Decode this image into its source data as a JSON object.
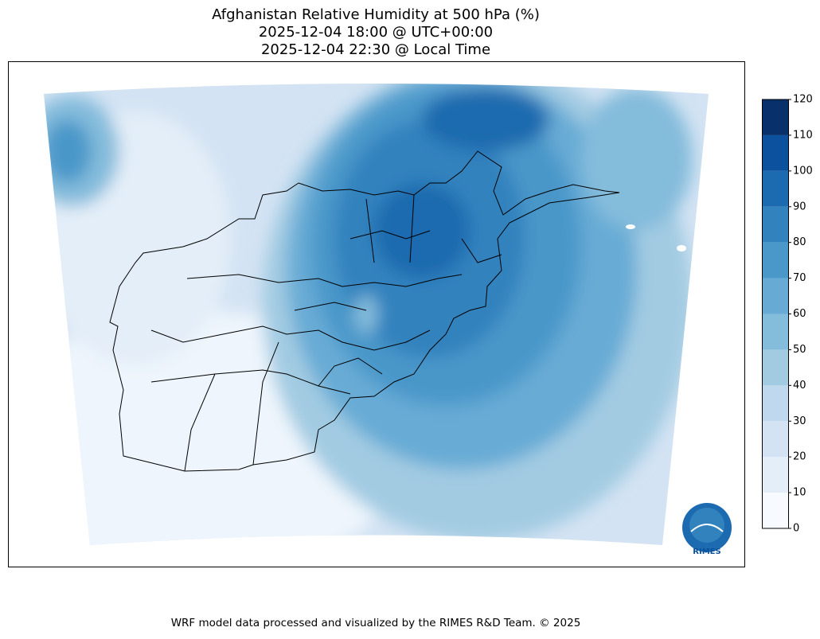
{
  "header": {
    "title_lines": [
      "Afghanistan Relative Humidity at 500 hPa (%)",
      "2025-12-04 18:00 @ UTC+00:00",
      "2025-12-04 22:30 @ Local Time"
    ]
  },
  "colorbar": {
    "ticks": [
      0,
      10,
      20,
      30,
      40,
      50,
      60,
      70,
      80,
      90,
      100,
      110,
      120
    ],
    "colors": [
      "#f7fbff",
      "#e4eef8",
      "#d3e3f3",
      "#bfd8ed",
      "#a2cbe2",
      "#84bcdb",
      "#67abd5",
      "#4a97c9",
      "#3282be",
      "#1c6aaf",
      "#0b519d",
      "#08306b"
    ]
  },
  "logo": {
    "text": "RIMES"
  },
  "footer": "WRF model data processed and visualized by the RIMES R&D Team. © 2025"
}
